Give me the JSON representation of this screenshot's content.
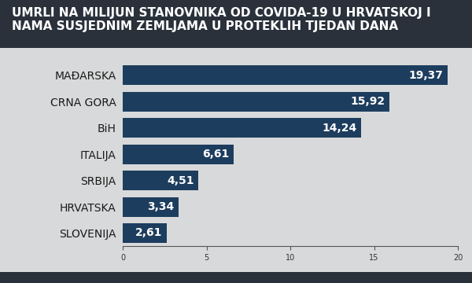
{
  "chart_data": {
    "type": "bar",
    "orientation": "horizontal",
    "title": "UMRLI NA MILIJUN STANOVNIKA OD COVIDA-19 U HRVATSKOJ I NAMA SUSJEDNIM ZEMLJAMA U PROTEKLIH TJEDAN DANA",
    "categories": [
      "MAĐARSKA",
      "CRNA GORA",
      "BiH",
      "ITALIJA",
      "SRBIJA",
      "HRVATSKA",
      "SLOVENIJA"
    ],
    "values": [
      19.37,
      15.92,
      14.24,
      6.61,
      4.51,
      3.34,
      2.61
    ],
    "value_labels": [
      "19,37",
      "15,92",
      "14,24",
      "6,61",
      "4,51",
      "3,34",
      "2,61"
    ],
    "data_labels": true,
    "color": "#1d3d5e",
    "xlim": [
      0,
      20
    ],
    "xticks": [
      0,
      5,
      10,
      15,
      20
    ],
    "grid": false
  }
}
